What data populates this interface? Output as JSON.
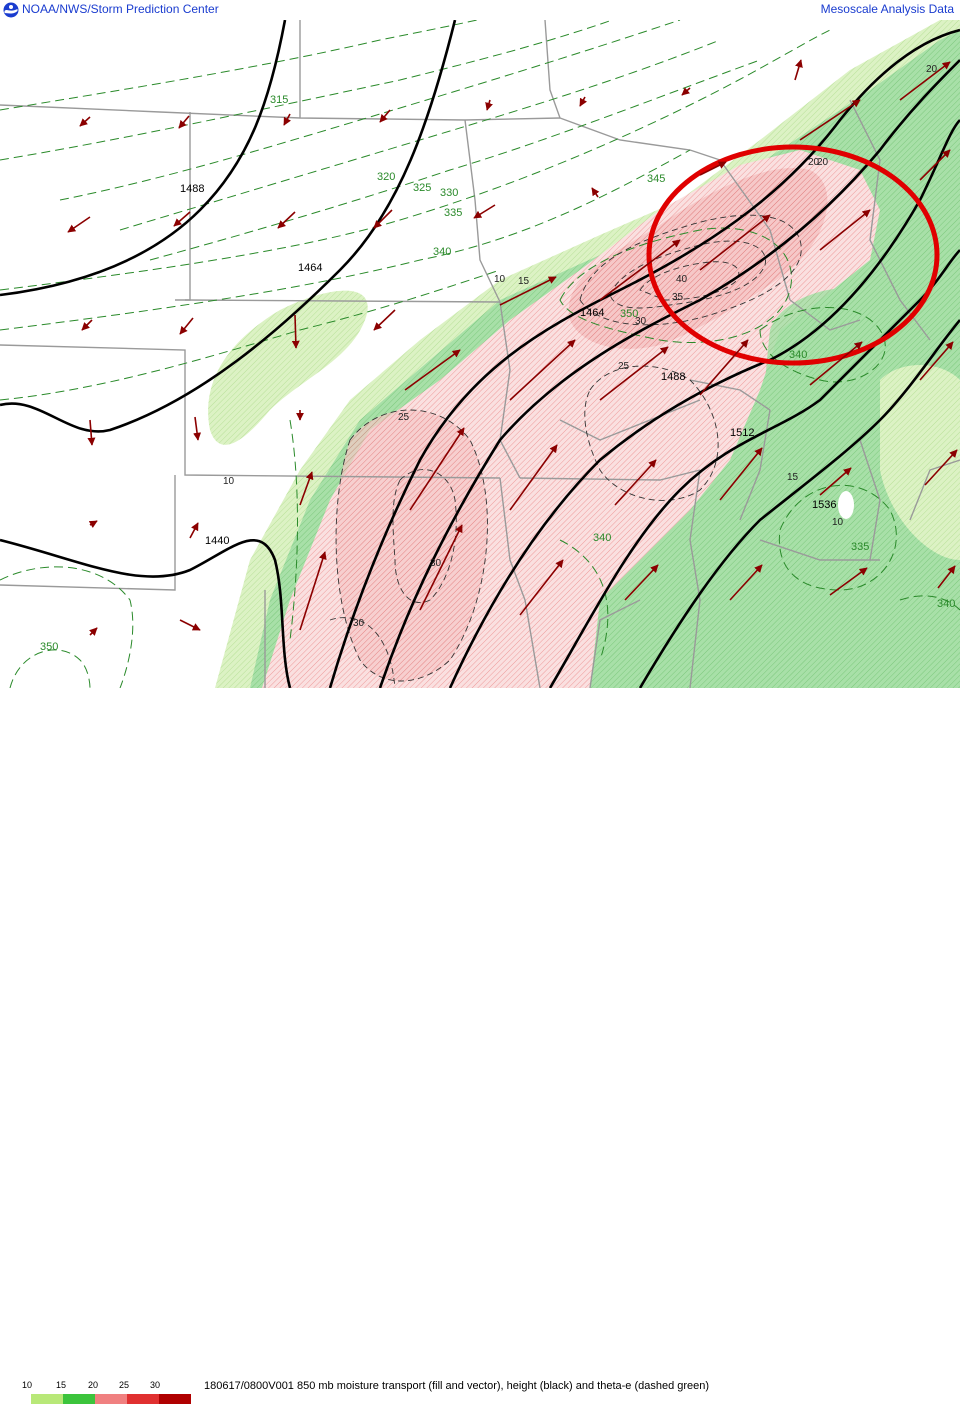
{
  "header": {
    "left_title": "NOAA/NWS/Storm Prediction Center",
    "right_title": "Mesoscale Analysis Data",
    "logo_icon": "noaa-logo-icon"
  },
  "caption": "180617/0800V001 850 mb moisture transport (fill and vector), height (black) and theta-e (dashed green)",
  "legend": {
    "labels": [
      "10",
      "15",
      "20",
      "25",
      "30"
    ],
    "colors": [
      "#b8e878",
      "#3cc43c",
      "#f08080",
      "#e03030",
      "#b00000"
    ]
  },
  "colors": {
    "fill_light_green": "#d6f0b8",
    "fill_green": "#a6dfa6",
    "fill_pink": "#f8d0d0",
    "fill_pink_dark": "#f2b8b8",
    "height_contour": "#000000",
    "theta_e_contour": "#2a8a2a",
    "vectors": "#8b0000",
    "boundaries": "#9a9a9a",
    "highlight_circle": "#e00000"
  },
  "labels": {
    "heights": [
      "1488",
      "1464",
      "1440",
      "1464",
      "1488",
      "1512",
      "1536"
    ],
    "theta_e": [
      "315",
      "320",
      "325",
      "330",
      "335",
      "340",
      "345",
      "350",
      "340",
      "340",
      "335",
      "340",
      "350"
    ],
    "moisture": [
      "10",
      "15",
      "20",
      "25",
      "30",
      "35",
      "40",
      "25",
      "30",
      "30",
      "10",
      "15",
      "10",
      "20",
      "20"
    ]
  }
}
